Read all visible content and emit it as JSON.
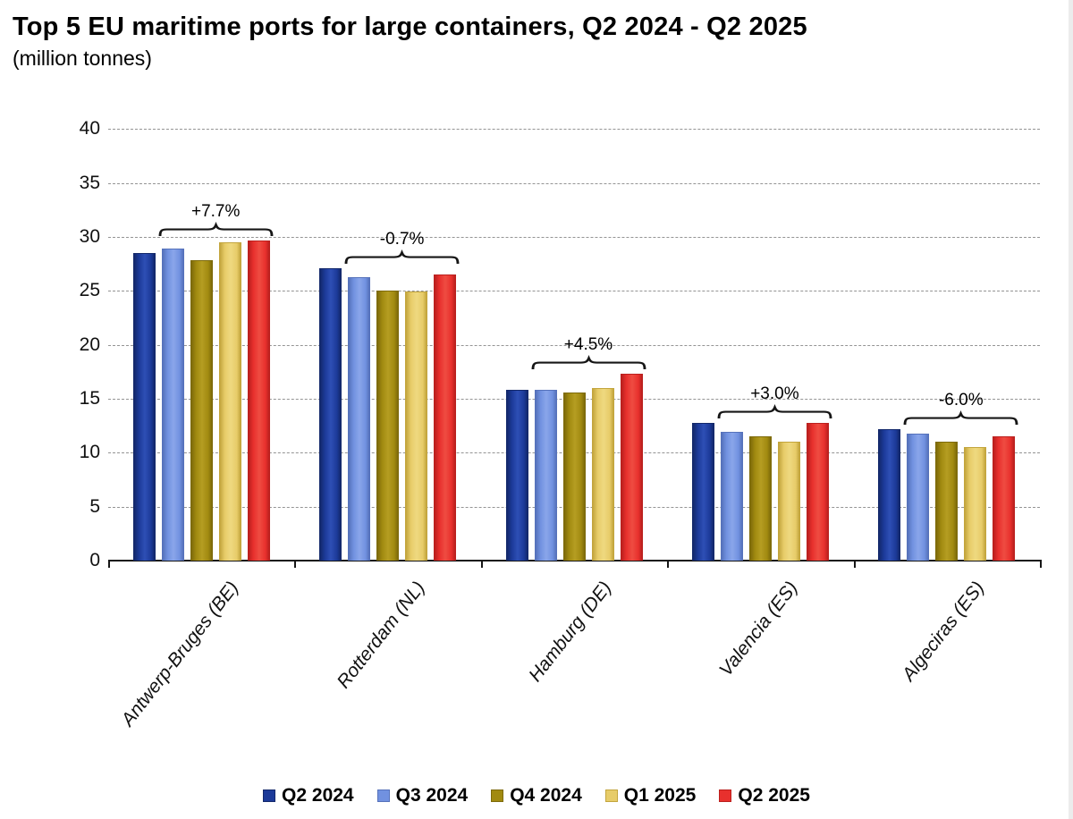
{
  "title": "Top 5 EU maritime ports for large containers, Q2 2024 - Q2 2025",
  "subtitle": "(million tonnes)",
  "chart_data": {
    "type": "bar",
    "title": "Top 5 EU maritime ports for large containers, Q2 2024 - Q2 2025",
    "subtitle": "(million tonnes)",
    "unit": "million tonnes",
    "categories": [
      "Antwerp-Bruges (BE)",
      "Rotterdam (NL)",
      "Hamburg (DE)",
      "Valencia (ES)",
      "Algeciras (ES)"
    ],
    "series": [
      {
        "name": "Q2 2024",
        "color": "#1c3a99",
        "color_light": "#2e4fb5",
        "color_dark": "#13286b",
        "values": [
          28.5,
          27.1,
          15.8,
          12.8,
          12.2
        ]
      },
      {
        "name": "Q3 2024",
        "color": "#7191e0",
        "color_light": "#8aa6ea",
        "color_dark": "#5672bb",
        "values": [
          28.9,
          26.3,
          15.8,
          11.9,
          11.8
        ]
      },
      {
        "name": "Q4 2024",
        "color": "#a18a10",
        "color_light": "#b59d22",
        "color_dark": "#7d6a0a",
        "values": [
          27.8,
          25.0,
          15.6,
          11.5,
          11.0
        ]
      },
      {
        "name": "Q1 2025",
        "color": "#e7cc69",
        "color_light": "#efd980",
        "color_dark": "#c3a53d",
        "values": [
          29.5,
          24.9,
          16.0,
          11.0,
          10.5
        ]
      },
      {
        "name": "Q2 2025",
        "color": "#e8302d",
        "color_light": "#ef4c42",
        "color_dark": "#bb201e",
        "values": [
          29.7,
          26.5,
          17.3,
          12.8,
          11.5
        ]
      }
    ],
    "annotations": [
      {
        "category": "Antwerp-Bruges (BE)",
        "label": "+7.7%"
      },
      {
        "category": "Rotterdam (NL)",
        "label": "-0.7%"
      },
      {
        "category": "Hamburg (DE)",
        "label": "+4.5%"
      },
      {
        "category": "Valencia (ES)",
        "label": "+3.0%"
      },
      {
        "category": "Algeciras (ES)",
        "label": "-6.0%"
      }
    ],
    "ylim": [
      0,
      40
    ],
    "ytick_step": 5,
    "yticks": [
      0,
      5,
      10,
      15,
      20,
      25,
      30,
      35,
      40
    ],
    "grid": "horizontal-dashed",
    "legend_position": "bottom",
    "axis_color": "#161616",
    "gridline_color": "#949494"
  }
}
